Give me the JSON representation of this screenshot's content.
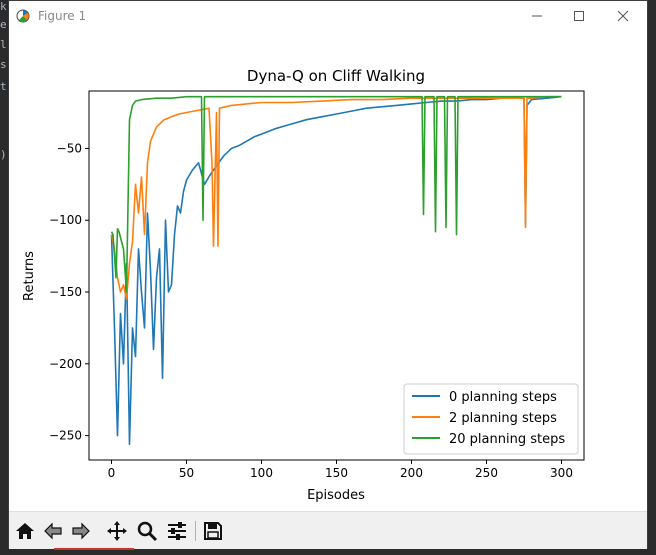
{
  "window": {
    "title": "Figure 1",
    "icon": "matplotlib-figure-icon"
  },
  "toolbar": {
    "icons": [
      "home-icon",
      "back-icon",
      "forward-icon",
      "pan-icon",
      "zoom-icon",
      "configure-subplots-icon",
      "save-icon"
    ]
  },
  "chart_data": {
    "type": "line",
    "title": "Dyna-Q on Cliff Walking",
    "xlabel": "Episodes",
    "ylabel": "Returns",
    "xlim": [
      -15,
      315
    ],
    "ylim": [
      -267,
      -10
    ],
    "xticks": [
      0,
      50,
      100,
      150,
      200,
      250,
      300
    ],
    "yticks": [
      -50,
      -100,
      -150,
      -200,
      -250
    ],
    "legend_position": "lower right",
    "series": [
      {
        "name": "0 planning steps",
        "color": "#1f77b4",
        "x": [
          0,
          2,
          4,
          6,
          8,
          10,
          12,
          14,
          16,
          18,
          20,
          22,
          24,
          26,
          28,
          30,
          32,
          34,
          36,
          38,
          40,
          42,
          44,
          46,
          48,
          50,
          54,
          58,
          62,
          66,
          70,
          75,
          80,
          85,
          90,
          95,
          100,
          110,
          120,
          130,
          140,
          150,
          160,
          170,
          180,
          190,
          200,
          210,
          220,
          230,
          240,
          250,
          260,
          270,
          275,
          276,
          277,
          280,
          290,
          300
        ],
        "values": [
          -110,
          -175,
          -250,
          -165,
          -200,
          -130,
          -256,
          -175,
          -195,
          -120,
          -150,
          -175,
          -95,
          -135,
          -190,
          -140,
          -120,
          -210,
          -100,
          -150,
          -145,
          -110,
          -90,
          -95,
          -80,
          -72,
          -65,
          -60,
          -75,
          -68,
          -62,
          -55,
          -50,
          -48,
          -45,
          -42,
          -40,
          -36,
          -33,
          -30,
          -28,
          -26,
          -24,
          -22,
          -21,
          -20,
          -19,
          -18,
          -17,
          -17,
          -16,
          -16,
          -15,
          -15,
          -15,
          -103,
          -20,
          -16,
          -15,
          -14
        ]
      },
      {
        "name": "2 planning steps",
        "color": "#ff7f0e",
        "x": [
          0,
          2,
          4,
          6,
          8,
          10,
          12,
          14,
          16,
          18,
          20,
          22,
          24,
          26,
          28,
          30,
          35,
          40,
          45,
          50,
          55,
          60,
          65,
          67,
          68,
          70,
          71,
          72,
          80,
          90,
          100,
          120,
          140,
          160,
          180,
          200,
          220,
          230,
          240,
          250,
          260,
          270,
          275,
          276,
          277,
          280,
          290,
          300
        ],
        "values": [
          -110,
          -120,
          -140,
          -150,
          -145,
          -155,
          -130,
          -115,
          -75,
          -95,
          -70,
          -110,
          -60,
          -45,
          -40,
          -35,
          -30,
          -28,
          -26,
          -25,
          -24,
          -23,
          -22,
          -60,
          -118,
          -25,
          -118,
          -22,
          -20,
          -19,
          -18,
          -18,
          -17,
          -16,
          -16,
          -15,
          -15,
          -15,
          -15,
          -15,
          -15,
          -15,
          -15,
          -105,
          -15,
          -15,
          -14,
          -14
        ]
      },
      {
        "name": "20 planning steps",
        "color": "#2ca02c",
        "x": [
          0,
          1,
          2,
          3,
          4,
          5,
          6,
          8,
          10,
          12,
          14,
          16,
          20,
          30,
          40,
          50,
          60,
          61,
          62,
          70,
          100,
          150,
          200,
          207,
          208,
          209,
          215,
          216,
          217,
          222,
          223,
          224,
          229,
          230,
          231,
          240,
          260,
          280,
          300
        ],
        "values": [
          -108,
          -110,
          -125,
          -140,
          -106,
          -108,
          -112,
          -120,
          -150,
          -30,
          -20,
          -17,
          -16,
          -15,
          -15,
          -14,
          -14,
          -100,
          -14,
          -14,
          -14,
          -14,
          -14,
          -14,
          -96,
          -14,
          -14,
          -108,
          -14,
          -14,
          -105,
          -14,
          -14,
          -110,
          -14,
          -14,
          -14,
          -14,
          -14
        ]
      }
    ]
  }
}
